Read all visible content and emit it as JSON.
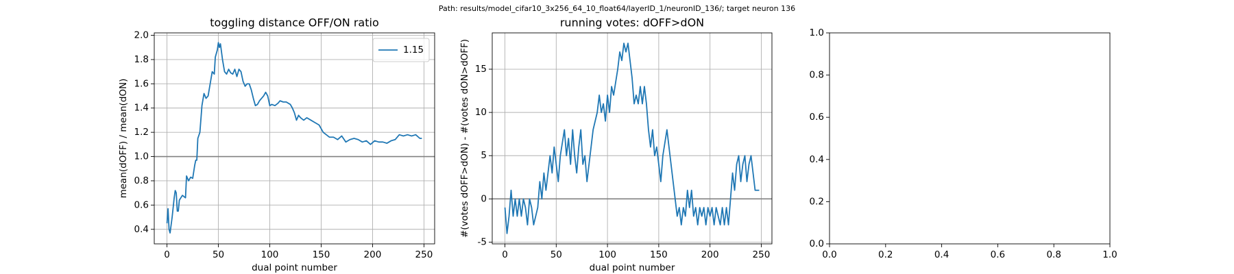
{
  "suptitle": "Path: results/model_cifar10_3x256_64_10_float64/layerID_1/neuronID_136/; target neuron 136",
  "chart_data": [
    {
      "type": "line",
      "title": "toggling distance OFF/ON ratio",
      "xlabel": "dual point number",
      "ylabel": "mean(dOFF) / mean(dON)",
      "x": [
        0,
        1,
        2,
        3,
        5,
        7,
        8,
        9,
        10,
        11,
        12,
        15,
        18,
        19,
        21,
        23,
        25,
        27,
        28,
        29,
        30,
        32,
        34,
        36,
        38,
        40,
        42,
        44,
        46,
        47,
        49,
        50,
        51,
        52,
        54,
        56,
        58,
        60,
        62,
        64,
        66,
        68,
        70,
        72,
        74,
        76,
        78,
        80,
        82,
        84,
        86,
        88,
        90,
        92,
        94,
        96,
        98,
        100,
        102,
        105,
        108,
        110,
        113,
        116,
        120,
        122,
        124,
        126,
        128,
        130,
        133,
        136,
        140,
        144,
        148,
        152,
        155,
        158,
        162,
        166,
        170,
        174,
        178,
        182,
        186,
        190,
        194,
        198,
        202,
        206,
        210,
        214,
        218,
        222,
        226,
        230,
        234,
        238,
        242,
        246,
        248
      ],
      "series": [
        {
          "name": "1.15",
          "color": "#1f77b4",
          "values": [
            0.45,
            0.57,
            0.4,
            0.37,
            0.5,
            0.66,
            0.72,
            0.7,
            0.55,
            0.55,
            0.64,
            0.68,
            0.66,
            0.84,
            0.8,
            0.83,
            0.82,
            0.93,
            0.97,
            0.97,
            1.15,
            1.2,
            1.42,
            1.52,
            1.48,
            1.5,
            1.6,
            1.7,
            1.68,
            1.82,
            1.88,
            1.94,
            1.9,
            1.93,
            1.8,
            1.7,
            1.68,
            1.72,
            1.69,
            1.68,
            1.72,
            1.66,
            1.72,
            1.7,
            1.62,
            1.58,
            1.6,
            1.6,
            1.55,
            1.48,
            1.42,
            1.43,
            1.46,
            1.48,
            1.5,
            1.53,
            1.5,
            1.42,
            1.43,
            1.42,
            1.44,
            1.46,
            1.45,
            1.45,
            1.43,
            1.4,
            1.36,
            1.3,
            1.34,
            1.32,
            1.3,
            1.32,
            1.3,
            1.28,
            1.26,
            1.2,
            1.18,
            1.16,
            1.16,
            1.14,
            1.17,
            1.12,
            1.14,
            1.15,
            1.14,
            1.12,
            1.13,
            1.1,
            1.13,
            1.12,
            1.12,
            1.11,
            1.13,
            1.14,
            1.18,
            1.17,
            1.18,
            1.17,
            1.18,
            1.15,
            1.15
          ]
        }
      ],
      "hlines": [
        {
          "value": 1,
          "color": "#808080"
        }
      ],
      "xlim": [
        -12.4,
        260.4
      ],
      "ylim": [
        0.28,
        2.02
      ],
      "xticks": [
        0,
        50,
        100,
        150,
        200,
        250
      ],
      "yticks": [
        0.4,
        0.6,
        0.8,
        {
          "value": 1,
          "label": "1.0"
        },
        1.2,
        1.4,
        1.6,
        1.8,
        {
          "value": 2,
          "label": "2.0"
        }
      ],
      "grid": true,
      "legend": "upper right"
    },
    {
      "type": "line",
      "title": "running votes: dOFF>dON",
      "xlabel": "dual point number",
      "ylabel": "#(votes dOFF>dON) - #(votes dON>dOFF)",
      "x": [
        0,
        2,
        4,
        6,
        8,
        10,
        12,
        14,
        16,
        18,
        20,
        22,
        24,
        26,
        28,
        32,
        34,
        36,
        38,
        40,
        44,
        46,
        48,
        50,
        52,
        54,
        58,
        60,
        62,
        64,
        66,
        68,
        70,
        72,
        74,
        76,
        78,
        80,
        82,
        86,
        90,
        92,
        94,
        96,
        98,
        100,
        102,
        104,
        106,
        110,
        112,
        114,
        116,
        118,
        120,
        122,
        124,
        126,
        128,
        130,
        132,
        134,
        136,
        138,
        140,
        142,
        144,
        146,
        148,
        150,
        152,
        154,
        158,
        160,
        164,
        166,
        168,
        170,
        172,
        174,
        176,
        178,
        180,
        182,
        184,
        186,
        188,
        190,
        192,
        194,
        196,
        198,
        200,
        202,
        204,
        206,
        208,
        210,
        212,
        214,
        216,
        218,
        220,
        222,
        224,
        226,
        228,
        230,
        232,
        234,
        236,
        238,
        240,
        242,
        244,
        248
      ],
      "series": [
        {
          "color": "#1f77b4",
          "values": [
            -1,
            -4,
            -2,
            1,
            -2,
            0,
            -2,
            0,
            -2,
            0,
            -1,
            -3,
            0,
            -1,
            -3,
            -1,
            2,
            0,
            3,
            1,
            5,
            3,
            6,
            4,
            2,
            5,
            8,
            5,
            7,
            4,
            8,
            5,
            3,
            6,
            8,
            4,
            5,
            2,
            4,
            8,
            10,
            12,
            10,
            11,
            9,
            12,
            10,
            13,
            12,
            15,
            17,
            16,
            18,
            17,
            18,
            16,
            14,
            11,
            12,
            11,
            13,
            11,
            13,
            11,
            8,
            6,
            8,
            5,
            6,
            4,
            2,
            5,
            8,
            6,
            2,
            0,
            -2,
            -1,
            -3,
            -1,
            -2,
            1,
            -1,
            1,
            -2,
            -1,
            -3,
            -1,
            -2,
            -1,
            -3,
            -1,
            -2,
            -1,
            -3,
            -1,
            -2,
            -3,
            -1,
            -3,
            -1,
            -3,
            0,
            3,
            1,
            4,
            5,
            2,
            4,
            5,
            2,
            4,
            5,
            3,
            1,
            1
          ]
        }
      ],
      "hlines": [
        {
          "value": 0,
          "color": "#808080"
        }
      ],
      "xlim": [
        -12.4,
        260.4
      ],
      "ylim": [
        -5.2,
        19.2
      ],
      "xticks": [
        0,
        50,
        100,
        150,
        200,
        250
      ],
      "yticks": [
        -5,
        0,
        5,
        10,
        15
      ],
      "grid": true
    },
    {
      "type": "line",
      "xlim": [
        0,
        1
      ],
      "ylim": [
        0,
        1
      ],
      "xticks": [
        {
          "value": 0,
          "label": "0.0"
        },
        0.2,
        0.4,
        0.6,
        0.8,
        {
          "value": 1,
          "label": "1.0"
        }
      ],
      "yticks": [
        {
          "value": 0,
          "label": "0.0"
        },
        0.2,
        0.4,
        0.6,
        0.8,
        {
          "value": 1,
          "label": "1.0"
        }
      ],
      "grid": false
    }
  ]
}
